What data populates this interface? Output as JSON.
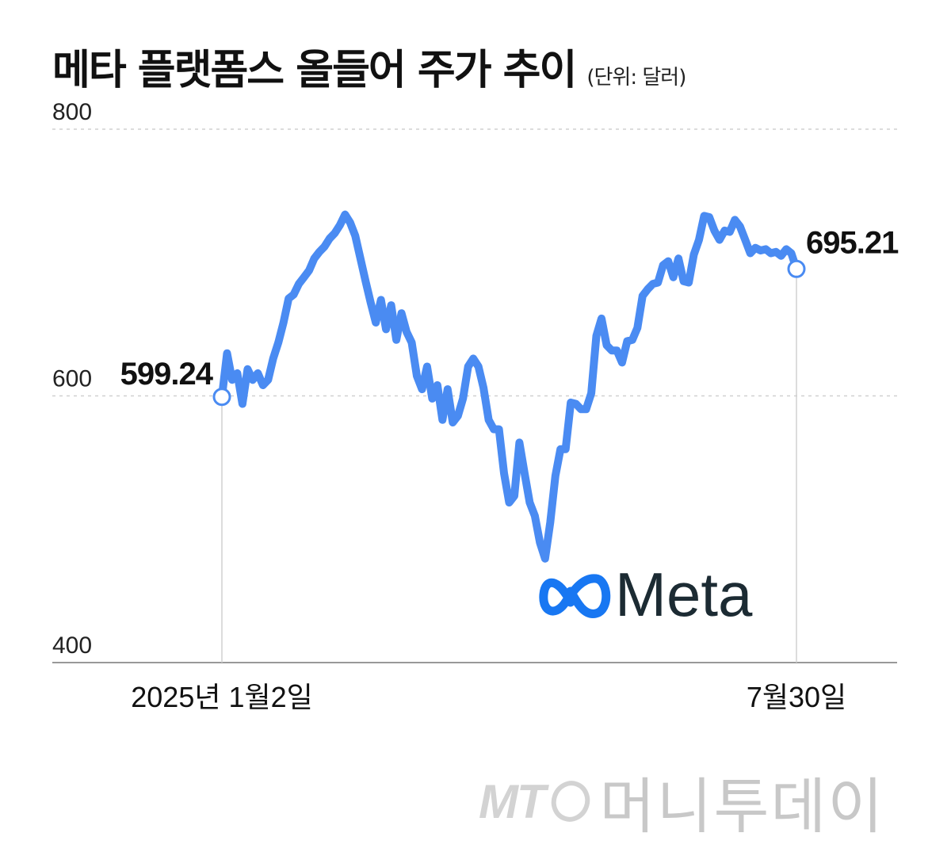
{
  "header": {
    "title": "메타 플랫폼스 올들어 주가 추이",
    "unit": "(단위: 달러)"
  },
  "watermark": {
    "mt": "MT",
    "name": "머니투데이"
  },
  "logo": {
    "text": "Meta",
    "icon": "meta-infinity-icon",
    "icon_color": "#1877f2"
  },
  "chart_data": {
    "type": "line",
    "title": "메타 플랫폼스 올들어 주가 추이",
    "unit_label": "(단위: 달러)",
    "ylim": [
      400,
      800
    ],
    "yticks": [
      "800",
      "600",
      "400"
    ],
    "grid": true,
    "x_labels": {
      "start": "2025년 1월2일",
      "end": "7월30일"
    },
    "colors": {
      "line": "#4a8bf2",
      "grid": "#d0d0d0",
      "axis": "#999999"
    },
    "start_label": "599.24",
    "end_label": "695.21",
    "series": [
      {
        "values": [
          599.24,
          632,
          612,
          617,
          594,
          620,
          612,
          617,
          608,
          612,
          628,
          640,
          655,
          673,
          676,
          684,
          689,
          694,
          703,
          708,
          712,
          718,
          722,
          728,
          736,
          730,
          720,
          703,
          686,
          670,
          655,
          672,
          650,
          668,
          642,
          662,
          648,
          640,
          615,
          605,
          622,
          598,
          608,
          582,
          605,
          580,
          585,
          598,
          622,
          628,
          622,
          606,
          582,
          575,
          575,
          542,
          520,
          525,
          565,
          542,
          520,
          510,
          490,
          478,
          505,
          540,
          560,
          560,
          595,
          594,
          590,
          590,
          602,
          645,
          658,
          638,
          634,
          634,
          625,
          641,
          642,
          651,
          675,
          680,
          684,
          685,
          698,
          701,
          689,
          703,
          686,
          685,
          706,
          717,
          735,
          734,
          724,
          717,
          724,
          723,
          732,
          727,
          717,
          707,
          711,
          709,
          710,
          707,
          708,
          705,
          710,
          707,
          695.21
        ]
      }
    ]
  }
}
